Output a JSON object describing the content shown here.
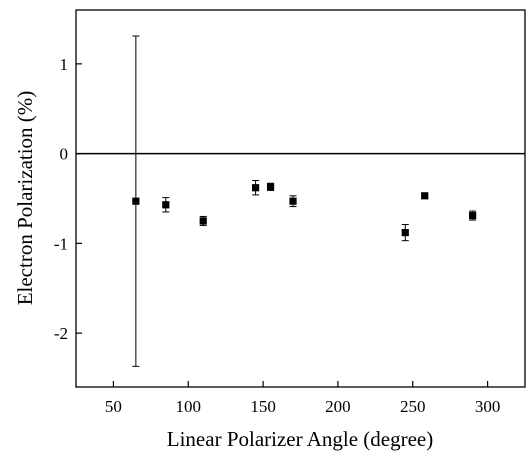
{
  "chart_data": {
    "type": "scatter",
    "title": "",
    "xlabel": "Linear Polarizer Angle (degree)",
    "ylabel": "Electron Polarization (%)",
    "xlim": [
      25,
      325
    ],
    "ylim": [
      -2.6,
      1.6
    ],
    "xticks": [
      50,
      100,
      150,
      200,
      250,
      300
    ],
    "yticks": [
      1,
      0,
      -1,
      -2
    ],
    "xtick_labels": [
      "50",
      "100",
      "150",
      "200",
      "250",
      "300"
    ],
    "ytick_labels": [
      "1",
      "0",
      "-1",
      "-2"
    ],
    "reference_line_y": 0,
    "grid": false,
    "marker": "square",
    "color": "#000000",
    "points": [
      {
        "x": 65,
        "y": -0.53,
        "err": 1.84
      },
      {
        "x": 85,
        "y": -0.57,
        "err": 0.08
      },
      {
        "x": 110,
        "y": -0.75,
        "err": 0.05
      },
      {
        "x": 145,
        "y": -0.38,
        "err": 0.08
      },
      {
        "x": 155,
        "y": -0.37,
        "err": 0.04
      },
      {
        "x": 170,
        "y": -0.53,
        "err": 0.06
      },
      {
        "x": 245,
        "y": -0.88,
        "err": 0.09
      },
      {
        "x": 258,
        "y": -0.47,
        "err": 0.03
      },
      {
        "x": 290,
        "y": -0.69,
        "err": 0.05
      }
    ]
  }
}
